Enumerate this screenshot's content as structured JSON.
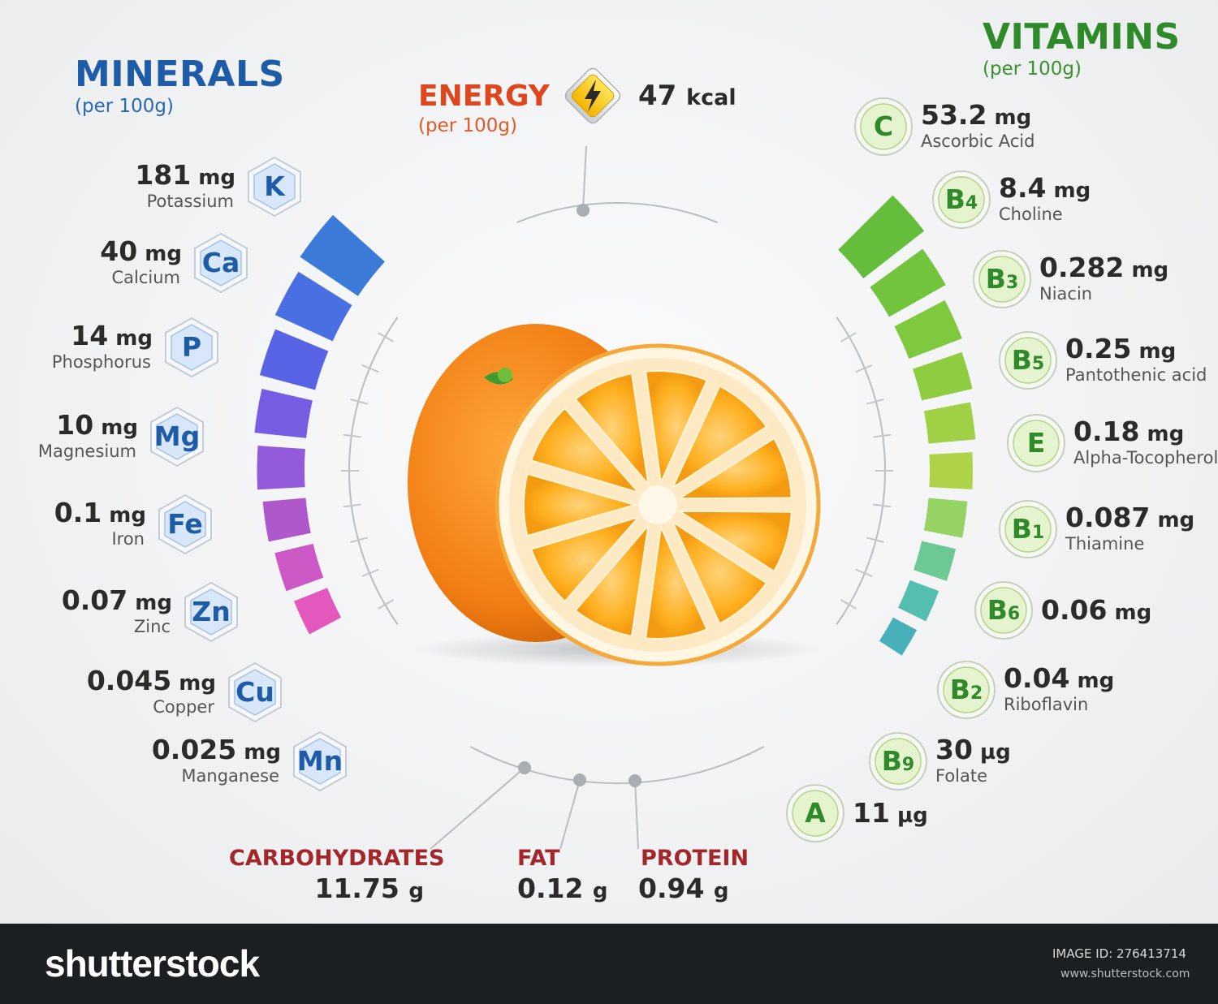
{
  "minerals": {
    "title": "MINERALS",
    "subtitle": "(per 100g)",
    "items": [
      {
        "symbol": "K",
        "value": "181",
        "unit": "mg",
        "name": "Potassium"
      },
      {
        "symbol": "Ca",
        "value": "40",
        "unit": "mg",
        "name": "Calcium"
      },
      {
        "symbol": "P",
        "value": "14",
        "unit": "mg",
        "name": "Phosphorus"
      },
      {
        "symbol": "Mg",
        "value": "10",
        "unit": "mg",
        "name": "Magnesium"
      },
      {
        "symbol": "Fe",
        "value": "0.1",
        "unit": "mg",
        "name": "Iron"
      },
      {
        "symbol": "Zn",
        "value": "0.07",
        "unit": "mg",
        "name": "Zinc"
      },
      {
        "symbol": "Cu",
        "value": "0.045",
        "unit": "mg",
        "name": "Copper"
      },
      {
        "symbol": "Mn",
        "value": "0.025",
        "unit": "mg",
        "name": "Manganese"
      }
    ]
  },
  "vitamins": {
    "title": "VITAMINS",
    "subtitle": "(per 100g)",
    "items": [
      {
        "symbol": "C",
        "sub": "",
        "value": "53.2",
        "unit": "mg",
        "name": "Ascorbic Acid"
      },
      {
        "symbol": "B",
        "sub": "4",
        "value": "8.4",
        "unit": "mg",
        "name": "Choline"
      },
      {
        "symbol": "B",
        "sub": "3",
        "value": "0.282",
        "unit": "mg",
        "name": "Niacin"
      },
      {
        "symbol": "B",
        "sub": "5",
        "value": "0.25",
        "unit": "mg",
        "name": "Pantothenic acid"
      },
      {
        "symbol": "E",
        "sub": "",
        "value": "0.18",
        "unit": "mg",
        "name": "Alpha-Tocopherol"
      },
      {
        "symbol": "B",
        "sub": "1",
        "value": "0.087",
        "unit": "mg",
        "name": "Thiamine"
      },
      {
        "symbol": "B",
        "sub": "6",
        "value": "0.06",
        "unit": "mg",
        "name": ""
      },
      {
        "symbol": "B",
        "sub": "2",
        "value": "0.04",
        "unit": "mg",
        "name": "Riboflavin"
      },
      {
        "symbol": "B",
        "sub": "9",
        "value": "30",
        "unit": "µg",
        "name": "Folate"
      },
      {
        "symbol": "A",
        "sub": "",
        "value": "11",
        "unit": "µg",
        "name": ""
      }
    ]
  },
  "energy": {
    "title": "ENERGY",
    "subtitle": "(per 100g)",
    "value": "47",
    "unit": "kcal"
  },
  "macros": [
    {
      "title": "CARBOHYDRATES",
      "value": "11.75",
      "unit": "g",
      "color": "#a3262b"
    },
    {
      "title": "FAT",
      "value": "0.12",
      "unit": "g",
      "color": "#a3262b"
    },
    {
      "title": "PROTEIN",
      "value": "0.94",
      "unit": "g",
      "color": "#a3262b"
    }
  ],
  "footer": {
    "brand": "shutterstock",
    "image_id": "IMAGE ID: 276413714",
    "url": "www.shutterstock.com"
  },
  "colors": {
    "minerals_title": "#1f5ca8",
    "vitamins_title": "#2f8a2a",
    "energy_title": "#e0461d",
    "mineral_badge": "#1f5ca8",
    "vitamin_badge": "#2f8a2a"
  }
}
